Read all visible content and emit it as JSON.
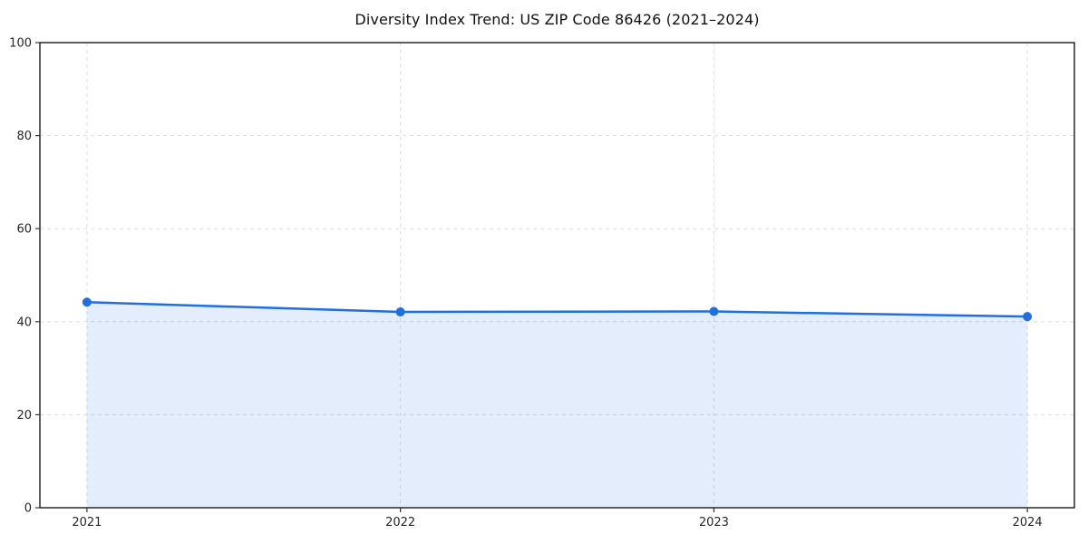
{
  "page": {
    "background": "#ffffff"
  },
  "chart_data": {
    "type": "line",
    "title": "Diversity Index Trend: US ZIP Code 86426 (2021–2024)",
    "categories": [
      "2021",
      "2022",
      "2023",
      "2024"
    ],
    "values": [
      44.2,
      42.1,
      42.2,
      41.1
    ],
    "xlabel": "",
    "ylabel": "",
    "ylim": [
      0,
      100
    ],
    "y_ticks": [
      0,
      20,
      40,
      60,
      80,
      100
    ],
    "grid": true,
    "legend": false,
    "area_fill": true,
    "styles": {
      "line_color": "#1f6fe0",
      "marker_color": "#1f6fe0",
      "fill_color": "#1f6fe0",
      "fill_opacity": 0.12,
      "grid_color": "#dddddd",
      "spine_color": "#1a1a1a",
      "tick_color": "#333333",
      "tick_label_color": "#262626",
      "title_color": "#111111"
    }
  }
}
